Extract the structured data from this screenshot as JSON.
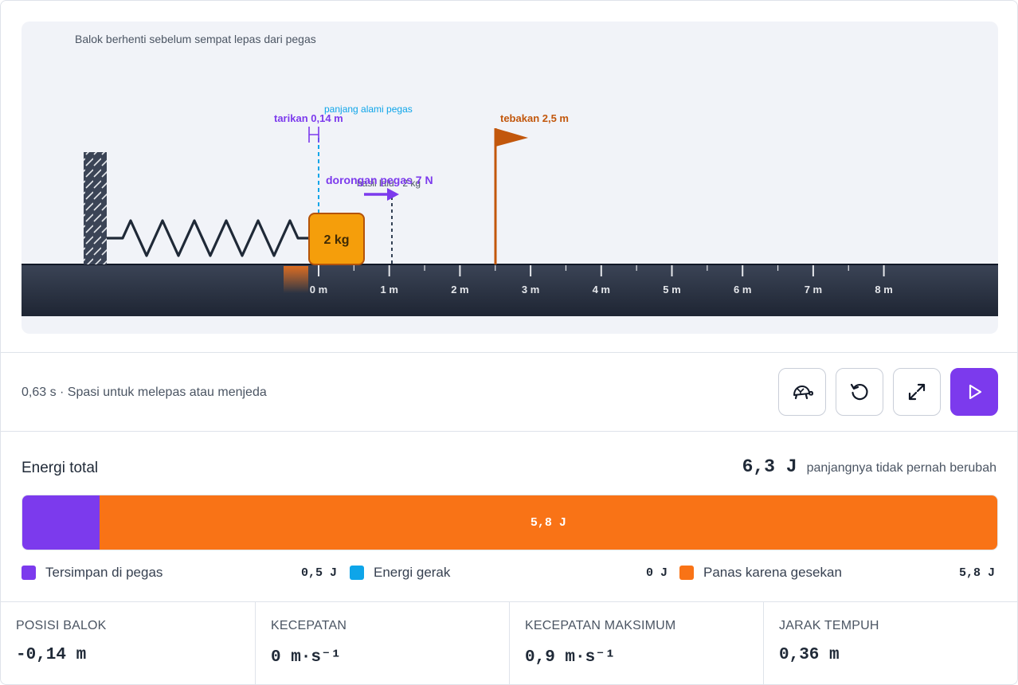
{
  "stage": {
    "message": "Balok berhenti sebelum sempat lepas dari pegas",
    "natural_length_label": "panjang alami pegas",
    "pull_label": "tarikan 0,14 m",
    "guess_label": "tebakan 2,5 m",
    "force_label": "dorongan pegas 7 N",
    "result_label": "hasil lalu · 2 kg",
    "block_label": "2 kg",
    "ruler_ticks": [
      "0 m",
      "1 m",
      "2 m",
      "3 m",
      "4 m",
      "5 m",
      "6 m",
      "7 m",
      "8 m"
    ],
    "block_position_m": -0.14,
    "guess_position_m": 2.5,
    "previous_result_m": 1.05
  },
  "controls": {
    "status": "0,63 s · Spasi untuk melepas atau menjeda",
    "buttons": [
      {
        "name": "slow-motion-button",
        "icon": "turtle-icon"
      },
      {
        "name": "reset-button",
        "icon": "reset-icon"
      },
      {
        "name": "fullscreen-button",
        "icon": "expand-icon"
      },
      {
        "name": "play-button",
        "icon": "play-icon"
      }
    ]
  },
  "energy": {
    "title": "Energi total",
    "total_value": "6,3 J",
    "total_note": "panjangnya tidak pernah berubah",
    "bar_label": "5,8 J",
    "segments": [
      {
        "name": "Tersimpan di pegas",
        "value": "0,5 J",
        "fraction": 0.079,
        "color": "#7c3aed"
      },
      {
        "name": "Energi gerak",
        "value": "0 J",
        "fraction": 0.0,
        "color": "#0ea5e9"
      },
      {
        "name": "Panas karena gesekan",
        "value": "5,8 J",
        "fraction": 0.921,
        "color": "#f97316"
      }
    ]
  },
  "stats": [
    {
      "label": "POSISI BALOK",
      "value": "-0,14 m"
    },
    {
      "label": "KECEPATAN",
      "value": "0 m·s⁻¹"
    },
    {
      "label": "KECEPATAN MAKSIMUM",
      "value": "0,9 m·s⁻¹"
    },
    {
      "label": "JARAK TEMPUH",
      "value": "0,36 m"
    }
  ]
}
